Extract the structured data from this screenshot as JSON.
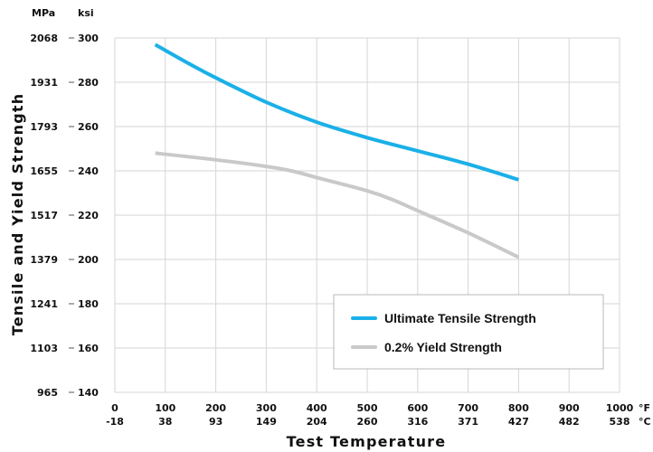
{
  "chart_data": {
    "type": "line",
    "y_unit_left": "MPa",
    "y_unit_right": "ksi",
    "x_unit_top": "°F",
    "x_unit_bottom": "°C",
    "ylabel": "Tensile and Yield Strength",
    "xlabel": "Test Temperature",
    "ylim_ksi": [
      140,
      300
    ],
    "xlim_f": [
      0,
      1000
    ],
    "yticks_ksi": [
      "300",
      "280",
      "260",
      "240",
      "220",
      "200",
      "180",
      "160",
      "140"
    ],
    "yticks_mpa": [
      "2068",
      "1931",
      "1793",
      "1655",
      "1517",
      "1379",
      "1241",
      "1103",
      "965"
    ],
    "xticks_f": [
      "0",
      "100",
      "200",
      "300",
      "400",
      "500",
      "600",
      "700",
      "800",
      "900",
      "1000"
    ],
    "xticks_c": [
      "-18",
      "38",
      "93",
      "149",
      "204",
      "260",
      "316",
      "371",
      "427",
      "482",
      "538"
    ],
    "grid": true,
    "legend_position": "bottom-right",
    "series": [
      {
        "name": "Ultimate Tensile Strength",
        "color": "#1ab0e8",
        "x": [
          80,
          150,
          200,
          300,
          400,
          500,
          600,
          700,
          800
        ],
        "y": [
          297,
          288,
          282,
          271,
          262,
          255,
          249,
          243,
          236
        ]
      },
      {
        "name": "0.2% Yield Strength",
        "color": "#c9c9c9",
        "x": [
          80,
          200,
          300,
          350,
          400,
          500,
          550,
          600,
          700,
          800
        ],
        "y": [
          248,
          245,
          242,
          240,
          237,
          231,
          227,
          222,
          212,
          201
        ]
      }
    ]
  }
}
